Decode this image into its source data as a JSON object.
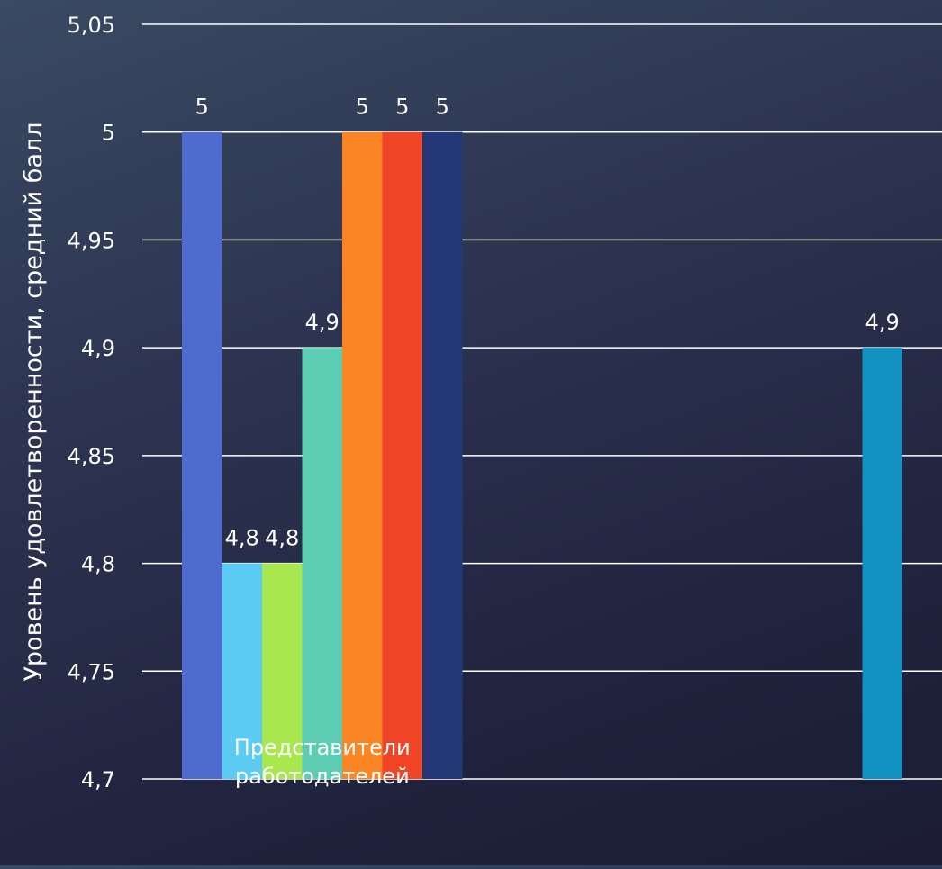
{
  "chart_data": {
    "type": "bar",
    "title": "",
    "xlabel": "",
    "ylabel": "Уровень удовлетворенности, средний балл",
    "ylim": [
      4.7,
      5.05
    ],
    "ytick_values": [
      4.7,
      4.75,
      4.8,
      4.85,
      4.9,
      4.95,
      5,
      5.05
    ],
    "ytick_labels": [
      "4,7",
      "4,75",
      "4,8",
      "4,85",
      "4,9",
      "4,95",
      "5",
      "5,05"
    ],
    "grid": true,
    "categories": [
      "Представители работодателей",
      ""
    ],
    "series": [
      {
        "values": [
          5,
          null
        ],
        "labels": [
          "5",
          ""
        ],
        "color": "#4f6bd0"
      },
      {
        "values": [
          4.8,
          null
        ],
        "labels": [
          "4,8",
          ""
        ],
        "color": "#5ccbf3"
      },
      {
        "values": [
          4.8,
          null
        ],
        "labels": [
          "4,8",
          ""
        ],
        "color": "#a8e84e"
      },
      {
        "values": [
          4.9,
          null
        ],
        "labels": [
          "4,9",
          ""
        ],
        "color": "#5ccdb3"
      },
      {
        "values": [
          5,
          null
        ],
        "labels": [
          "5",
          ""
        ],
        "color": "#fb8424"
      },
      {
        "values": [
          5,
          null
        ],
        "labels": [
          "5",
          ""
        ],
        "color": "#ef4526"
      },
      {
        "values": [
          5,
          null
        ],
        "labels": [
          "5",
          ""
        ],
        "color": "#243878"
      },
      {
        "values": [
          null,
          4.9
        ],
        "labels": [
          "",
          "4,9"
        ],
        "color": "#1192c0"
      }
    ]
  }
}
